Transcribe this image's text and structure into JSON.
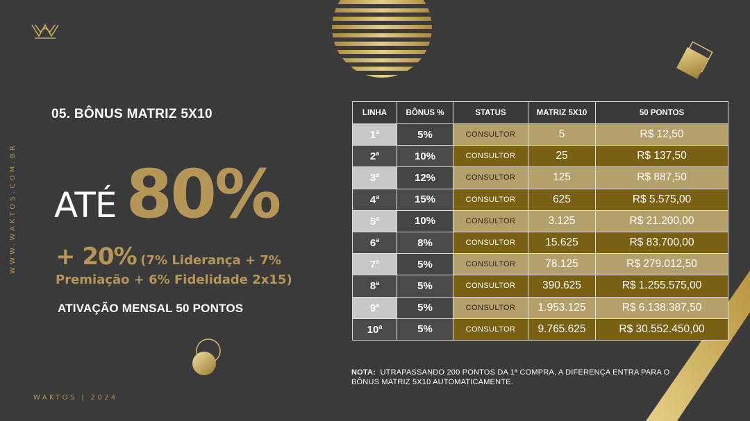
{
  "side_url": "WWW.WAKTOS.COM.BR",
  "footer": "WAKTOS | 2024",
  "section_title": "05. BÔNUS MATRIZ 5X10",
  "headline": {
    "prefix": "ATÉ",
    "percent": "80%"
  },
  "extra": {
    "big": "+ 20%",
    "line1": "(7% Liderança + 7%",
    "line2": "Premiação + 6% Fidelidade 2x15)"
  },
  "activation": "ATIVAÇÃO MENSAL 50 PONTOS",
  "table": {
    "headers": [
      "LINHA",
      "BÔNUS %",
      "STATUS",
      "MATRIZ 5X10",
      "50 PONTOS"
    ],
    "rows": [
      {
        "linha": "1",
        "sup": "a",
        "bonus": "5%",
        "status": "CONSULTOR",
        "matriz": "5",
        "pontos": "R$ 12,50"
      },
      {
        "linha": "2",
        "sup": "a",
        "bonus": "10%",
        "status": "CONSULTOR",
        "matriz": "25",
        "pontos": "R$ 137,50"
      },
      {
        "linha": "3",
        "sup": "a",
        "bonus": "12%",
        "status": "CONSULTOR",
        "matriz": "125",
        "pontos": "R$ 887,50"
      },
      {
        "linha": "4",
        "sup": "a",
        "bonus": "15%",
        "status": "CONSULTOR",
        "matriz": "625",
        "pontos": "R$ 5.575,00"
      },
      {
        "linha": "5",
        "sup": "a",
        "bonus": "10%",
        "status": "CONSULTOR",
        "matriz": "3.125",
        "pontos": "R$ 21.200,00"
      },
      {
        "linha": "6",
        "sup": "a",
        "bonus": "8%",
        "status": "CONSULTOR",
        "matriz": "15.625",
        "pontos": "R$ 83.700,00"
      },
      {
        "linha": "7",
        "sup": "a",
        "bonus": "5%",
        "status": "CONSULTOR",
        "matriz": "78.125",
        "pontos": "R$ 279.012,50"
      },
      {
        "linha": "8",
        "sup": "a",
        "bonus": "5%",
        "status": "CONSULTOR",
        "matriz": "390.625",
        "pontos": "R$ 1.255.575,00"
      },
      {
        "linha": "9",
        "sup": "a",
        "bonus": "5%",
        "status": "CONSULTOR",
        "matriz": "1.953.125",
        "pontos": "R$ 6.138.387,50"
      },
      {
        "linha": "10",
        "sup": "a",
        "bonus": "5%",
        "status": "CONSULTOR",
        "matriz": "9.765.625",
        "pontos": "R$ 30.552.450,00"
      }
    ]
  },
  "note": {
    "label": "NOTA:",
    "text": "UTRAPASSANDO 200 PONTOS DA 1ª COMPRA, A DIFERENÇA ENTRA PARA O BÔNUS MATRIZ 5X10 AUTOMATICAMENTE."
  },
  "colors": {
    "background": "#3a3a3b",
    "gold": "#b59657",
    "gold_light": "#b3a06a",
    "gold_dark": "#7a6013"
  },
  "icons": [
    "crown-logo-icon",
    "striped-circle-icon",
    "gold-squares-icon",
    "gold-rings-icon"
  ]
}
